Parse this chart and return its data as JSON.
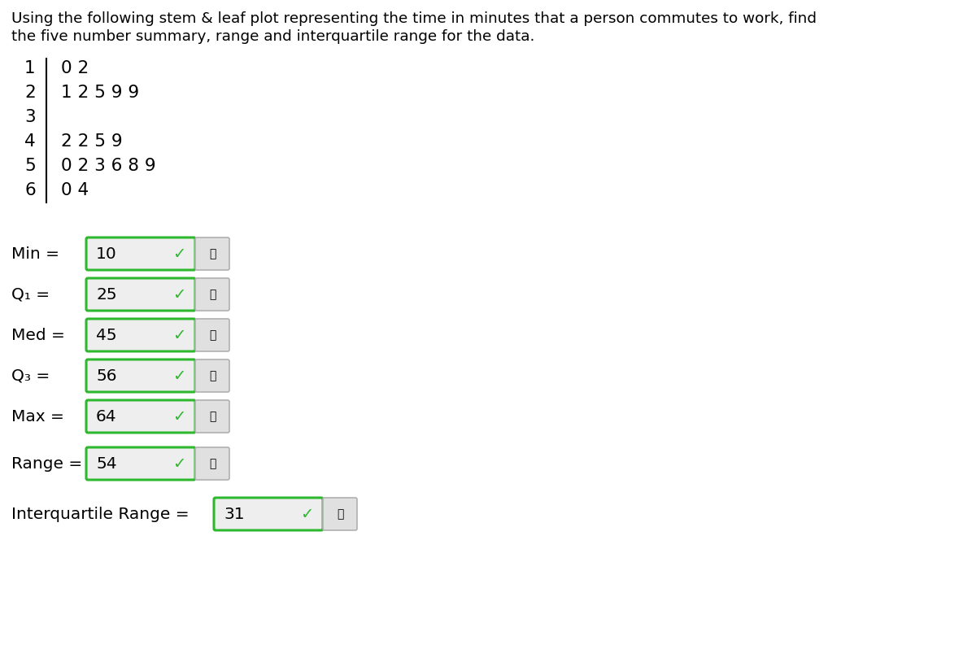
{
  "title_line1": "Using the following stem & leaf plot representing the time in minutes that a person commutes to work, find",
  "title_line2": "the five number summary, range and interquartile range for the data.",
  "stem_leaves": [
    {
      "stem": "1",
      "leaves": "0 2"
    },
    {
      "stem": "2",
      "leaves": "1 2 5 9 9"
    },
    {
      "stem": "3",
      "leaves": ""
    },
    {
      "stem": "4",
      "leaves": "2 2 5 9"
    },
    {
      "stem": "5",
      "leaves": "0 2 3 6 8 9"
    },
    {
      "stem": "6",
      "leaves": "0 4"
    }
  ],
  "answers": [
    {
      "label": "Min =",
      "value": "10"
    },
    {
      "label": "Q₁ =",
      "value": "25"
    },
    {
      "label": "Med =",
      "value": "45"
    },
    {
      "label": "Q₃ =",
      "value": "56"
    },
    {
      "label": "Max =",
      "value": "64"
    }
  ],
  "range_label": "Range =",
  "range_value": "54",
  "iqr_label": "Interquartile Range =",
  "iqr_value": "31",
  "bg_color": "#ffffff",
  "box_fill": "#eeeeee",
  "box_border_green": "#2db82d",
  "box_border_gray": "#b0b0b0",
  "check_color": "#2db82d",
  "text_color": "#000000",
  "font_size_title": 13.2,
  "font_size_stem": 15.5,
  "font_size_answer_label": 14.5,
  "font_size_value": 14.5,
  "font_size_check": 13,
  "font_size_icon": 11
}
